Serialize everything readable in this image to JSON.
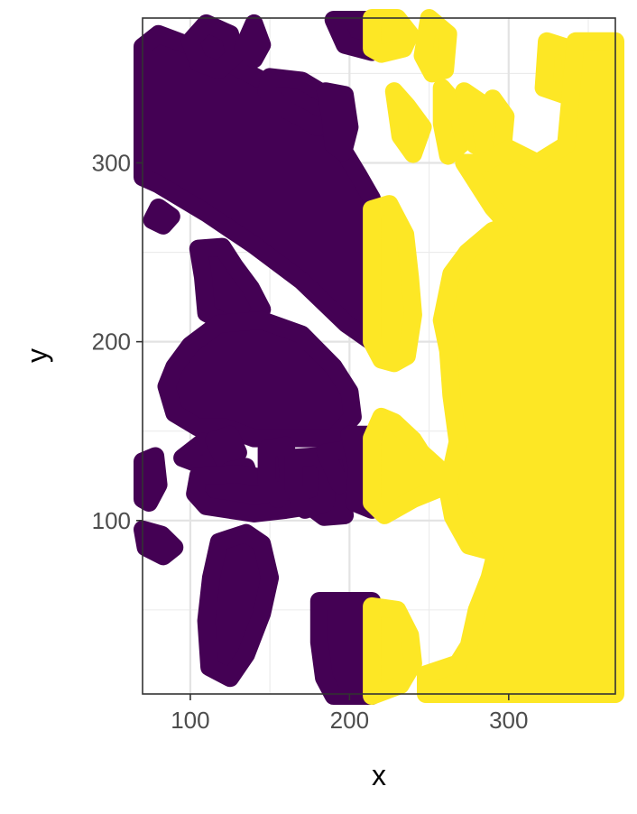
{
  "chart_data": {
    "type": "scatter",
    "xlabel": "x",
    "ylabel": "y",
    "xlim": [
      70,
      367
    ],
    "ylim": [
      3,
      381
    ],
    "x_ticks": [
      100,
      200,
      300
    ],
    "y_ticks": [
      100,
      200,
      300
    ],
    "x_tick_labels": [
      "100",
      "200",
      "300"
    ],
    "y_tick_labels": [
      "100",
      "200",
      "300"
    ],
    "grid": true,
    "legend": "none",
    "series": [
      {
        "color": "#440154",
        "regions": [
          [
            [
              70,
              365
            ],
            [
              80,
              372
            ],
            [
              110,
              362
            ],
            [
              150,
              344
            ],
            [
              170,
              332
            ],
            [
              190,
              316
            ],
            [
              205,
              294
            ],
            [
              214,
              280
            ],
            [
              214,
              200
            ],
            [
              198,
              210
            ],
            [
              170,
              234
            ],
            [
              140,
              254
            ],
            [
              110,
              272
            ],
            [
              80,
              288
            ],
            [
              70,
              292
            ]
          ],
          [
            [
              110,
              378
            ],
            [
              125,
              372
            ],
            [
              128,
              360
            ],
            [
              118,
              352
            ],
            [
              105,
              356
            ],
            [
              100,
              368
            ]
          ],
          [
            [
              140,
              378
            ],
            [
              145,
              366
            ],
            [
              140,
              358
            ],
            [
              133,
              364
            ]
          ],
          [
            [
              150,
              348
            ],
            [
              170,
              346
            ],
            [
              185,
              338
            ],
            [
              190,
              324
            ],
            [
              180,
              320
            ],
            [
              160,
              330
            ],
            [
              148,
              340
            ]
          ],
          [
            [
              190,
              380
            ],
            [
              214,
              380
            ],
            [
              214,
              362
            ],
            [
              197,
              366
            ]
          ],
          [
            [
              185,
              340
            ],
            [
              197,
              338
            ],
            [
              200,
              320
            ],
            [
              196,
              306
            ],
            [
              190,
              310
            ],
            [
              188,
              326
            ]
          ],
          [
            [
              105,
              252
            ],
            [
              120,
              253
            ],
            [
              128,
              242
            ],
            [
              138,
              230
            ],
            [
              145,
              218
            ],
            [
              138,
              210
            ],
            [
              123,
              210
            ],
            [
              110,
              216
            ],
            [
              108,
              236
            ]
          ],
          [
            [
              90,
              186
            ],
            [
              100,
              198
            ],
            [
              118,
              210
            ],
            [
              145,
              212
            ],
            [
              170,
              204
            ],
            [
              190,
              186
            ],
            [
              200,
              172
            ],
            [
              202,
              158
            ],
            [
              190,
              146
            ],
            [
              160,
              146
            ],
            [
              140,
              146
            ],
            [
              122,
              152
            ],
            [
              105,
              152
            ],
            [
              90,
              160
            ],
            [
              85,
              175
            ]
          ],
          [
            [
              95,
              135
            ],
            [
              108,
              144
            ],
            [
              115,
              138
            ],
            [
              110,
              130
            ]
          ],
          [
            [
              115,
              145
            ],
            [
              125,
              148
            ],
            [
              130,
              138
            ],
            [
              122,
              132
            ]
          ],
          [
            [
              125,
              128
            ],
            [
              135,
              130
            ],
            [
              138,
              122
            ],
            [
              128,
              118
            ]
          ],
          [
            [
              105,
              125
            ],
            [
              130,
              126
            ],
            [
              160,
              122
            ],
            [
              175,
              118
            ],
            [
              185,
              118
            ],
            [
              195,
              112
            ],
            [
              197,
              103
            ],
            [
              184,
              102
            ],
            [
              175,
              108
            ],
            [
              160,
              106
            ],
            [
              140,
              104
            ],
            [
              125,
              106
            ],
            [
              110,
              108
            ],
            [
              103,
              115
            ]
          ],
          [
            [
              148,
              140
            ],
            [
              160,
              142
            ],
            [
              162,
              122
            ],
            [
              155,
              112
            ],
            [
              148,
              122
            ]
          ],
          [
            [
              165,
              135
            ],
            [
              180,
              136
            ],
            [
              187,
              130
            ],
            [
              185,
              110
            ],
            [
              172,
              106
            ],
            [
              165,
              118
            ]
          ],
          [
            [
              185,
              138
            ],
            [
              200,
              140
            ],
            [
              203,
              125
            ],
            [
              194,
              120
            ]
          ],
          [
            [
              200,
              148
            ],
            [
              214,
              148
            ],
            [
              214,
              106
            ],
            [
              203,
              110
            ],
            [
              205,
              130
            ]
          ],
          [
            [
              70,
              133
            ],
            [
              78,
              136
            ],
            [
              80,
              120
            ],
            [
              74,
              110
            ],
            [
              70,
              112
            ]
          ],
          [
            [
              70,
              95
            ],
            [
              82,
              92
            ],
            [
              90,
              85
            ],
            [
              83,
              80
            ],
            [
              72,
              85
            ]
          ],
          [
            [
              118,
              88
            ],
            [
              135,
              93
            ],
            [
              145,
              87
            ],
            [
              150,
              68
            ],
            [
              145,
              48
            ],
            [
              135,
              25
            ],
            [
              125,
              12
            ],
            [
              112,
              18
            ],
            [
              110,
              44
            ],
            [
              113,
              68
            ]
          ],
          [
            [
              181,
              55
            ],
            [
              214,
              55
            ],
            [
              214,
              2
            ],
            [
              190,
              2
            ],
            [
              184,
              12
            ],
            [
              181,
              32
            ]
          ],
          [
            [
              80,
              275
            ],
            [
              88,
              270
            ],
            [
              83,
              265
            ],
            [
              76,
              268
            ]
          ]
        ]
      },
      {
        "color": "#fde725",
        "regions": [
          [
            [
              214,
              381
            ],
            [
              230,
              381
            ],
            [
              238,
              372
            ],
            [
              234,
              364
            ],
            [
              220,
              361
            ],
            [
              214,
              364
            ]
          ],
          [
            [
              250,
              381
            ],
            [
              262,
              372
            ],
            [
              260,
              352
            ],
            [
              252,
              350
            ],
            [
              246,
              360
            ]
          ],
          [
            [
              228,
              340
            ],
            [
              236,
              332
            ],
            [
              246,
              320
            ],
            [
              240,
              305
            ],
            [
              232,
              315
            ]
          ],
          [
            [
              258,
              342
            ],
            [
              268,
              332
            ],
            [
              272,
              312
            ],
            [
              262,
              304
            ],
            [
              258,
              322
            ]
          ],
          [
            [
              272,
              340
            ],
            [
              282,
              334
            ],
            [
              286,
              318
            ],
            [
              279,
              310
            ],
            [
              275,
              322
            ]
          ],
          [
            [
              290,
              336
            ],
            [
              298,
              326
            ],
            [
              296,
              306
            ],
            [
              286,
              302
            ],
            [
              283,
              318
            ]
          ],
          [
            [
              324,
              368
            ],
            [
              338,
              364
            ],
            [
              340,
              348
            ],
            [
              335,
              338
            ],
            [
              322,
              342
            ]
          ],
          [
            [
              214,
              274
            ],
            [
              225,
              277
            ],
            [
              235,
              260
            ],
            [
              238,
              236
            ],
            [
              240,
              215
            ],
            [
              236,
              192
            ],
            [
              228,
              188
            ],
            [
              220,
              190
            ],
            [
              214,
              200
            ]
          ],
          [
            [
              272,
              300
            ],
            [
              285,
              300
            ],
            [
              300,
              308
            ],
            [
              318,
              300
            ],
            [
              336,
              310
            ],
            [
              342,
              368
            ],
            [
              367,
              368
            ],
            [
              367,
              3
            ],
            [
              248,
              3
            ],
            [
              248,
              14
            ],
            [
              268,
              20
            ],
            [
              275,
              30
            ],
            [
              280,
              50
            ],
            [
              288,
              68
            ],
            [
              292,
              82
            ],
            [
              275,
              86
            ],
            [
              265,
              102
            ],
            [
              262,
              116
            ],
            [
              255,
              130
            ],
            [
              245,
              138
            ],
            [
              240,
              145
            ],
            [
              228,
              155
            ],
            [
              220,
              158
            ],
            [
              214,
              146
            ],
            [
              214,
              110
            ],
            [
              222,
              103
            ],
            [
              240,
              112
            ],
            [
              262,
              120
            ],
            [
              268,
              144
            ],
            [
              264,
              170
            ],
            [
              262,
              195
            ],
            [
              258,
              212
            ],
            [
              264,
              238
            ],
            [
              274,
              250
            ],
            [
              290,
              262
            ],
            [
              300,
              265
            ],
            [
              290,
              275
            ]
          ],
          [
            [
              214,
              52
            ],
            [
              230,
              50
            ],
            [
              238,
              36
            ],
            [
              240,
              20
            ],
            [
              232,
              8
            ],
            [
              214,
              2
            ]
          ]
        ]
      }
    ]
  }
}
